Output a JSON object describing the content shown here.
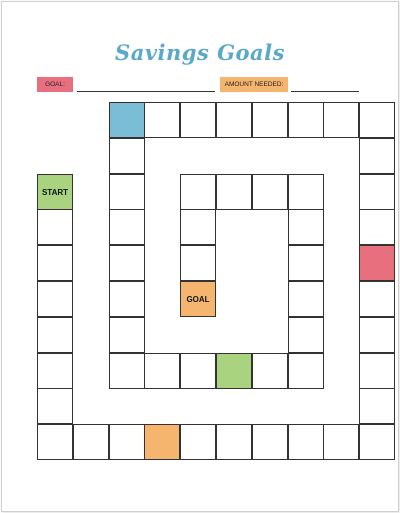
{
  "title": "Savings Goals",
  "goal_label": "GOAL:",
  "amount_label": "AMOUNT NEEDED:",
  "board": {
    "start_label": "START",
    "end_label": "GOAL"
  },
  "colors": {
    "title": "#5aa9c8",
    "blue": "#7bbdd6",
    "green": "#a9d37f",
    "orange": "#f6b56e",
    "red": "#e8707e"
  }
}
